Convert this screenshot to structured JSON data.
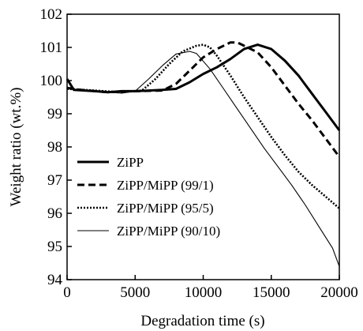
{
  "chart_data": {
    "type": "line",
    "xlabel": "Degradation time (s)",
    "ylabel": "Weight ratio (wt.%)",
    "xlim": [
      0,
      20000
    ],
    "ylim": [
      94,
      102
    ],
    "x_ticks": [
      "0",
      "5000",
      "10000",
      "15000",
      "20000"
    ],
    "y_ticks": [
      "94",
      "95",
      "96",
      "97",
      "98",
      "99",
      "100",
      "101",
      "102"
    ],
    "grid": false,
    "legend_position": "bottom-left",
    "series": [
      {
        "name": "ZiPP",
        "style": "solid-thick",
        "points": [
          [
            0,
            100.05
          ],
          [
            500,
            99.72
          ],
          [
            2000,
            99.68
          ],
          [
            3000,
            99.65
          ],
          [
            4000,
            99.68
          ],
          [
            5000,
            99.68
          ],
          [
            6000,
            99.7
          ],
          [
            7000,
            99.72
          ],
          [
            8000,
            99.75
          ],
          [
            9000,
            99.95
          ],
          [
            10000,
            100.2
          ],
          [
            11000,
            100.4
          ],
          [
            12000,
            100.65
          ],
          [
            13000,
            100.95
          ],
          [
            14000,
            101.08
          ],
          [
            15000,
            100.95
          ],
          [
            16000,
            100.6
          ],
          [
            17000,
            100.15
          ],
          [
            18000,
            99.6
          ],
          [
            19000,
            99.05
          ],
          [
            20000,
            98.5
          ]
        ]
      },
      {
        "name": "ZiPP/MiPP (99/1)",
        "style": "dashed",
        "points": [
          [
            0,
            99.78
          ],
          [
            1000,
            99.72
          ],
          [
            3000,
            99.65
          ],
          [
            5000,
            99.68
          ],
          [
            7000,
            99.7
          ],
          [
            8000,
            99.9
          ],
          [
            9000,
            100.3
          ],
          [
            10000,
            100.7
          ],
          [
            11000,
            100.95
          ],
          [
            12000,
            101.15
          ],
          [
            12500,
            101.15
          ],
          [
            13000,
            101.05
          ],
          [
            14000,
            100.85
          ],
          [
            15000,
            100.4
          ],
          [
            16000,
            99.85
          ],
          [
            17000,
            99.3
          ],
          [
            18000,
            98.8
          ],
          [
            19000,
            98.25
          ],
          [
            20000,
            97.7
          ]
        ]
      },
      {
        "name": "ZiPP/MiPP (95/5)",
        "style": "dotted",
        "points": [
          [
            0,
            99.75
          ],
          [
            2000,
            99.7
          ],
          [
            4000,
            99.65
          ],
          [
            5500,
            99.7
          ],
          [
            6500,
            100.05
          ],
          [
            7500,
            100.5
          ],
          [
            8500,
            100.88
          ],
          [
            9500,
            101.05
          ],
          [
            10000,
            101.08
          ],
          [
            10500,
            101.0
          ],
          [
            11000,
            100.75
          ],
          [
            12000,
            100.15
          ],
          [
            13000,
            99.5
          ],
          [
            14000,
            98.9
          ],
          [
            15000,
            98.3
          ],
          [
            16000,
            97.75
          ],
          [
            17000,
            97.25
          ],
          [
            18000,
            96.85
          ],
          [
            19000,
            96.5
          ],
          [
            20000,
            96.15
          ]
        ]
      },
      {
        "name": "ZiPP/MiPP (90/10)",
        "style": "solid-thin",
        "points": [
          [
            0,
            99.75
          ],
          [
            2000,
            99.68
          ],
          [
            4000,
            99.62
          ],
          [
            5000,
            99.68
          ],
          [
            6000,
            100.05
          ],
          [
            7000,
            100.45
          ],
          [
            8000,
            100.8
          ],
          [
            9000,
            100.88
          ],
          [
            9500,
            100.82
          ],
          [
            10500,
            100.35
          ],
          [
            11500,
            99.75
          ],
          [
            12500,
            99.15
          ],
          [
            13500,
            98.55
          ],
          [
            14500,
            97.95
          ],
          [
            15500,
            97.4
          ],
          [
            16500,
            96.85
          ],
          [
            17500,
            96.25
          ],
          [
            18500,
            95.6
          ],
          [
            19500,
            94.95
          ],
          [
            20000,
            94.4
          ]
        ]
      }
    ]
  }
}
